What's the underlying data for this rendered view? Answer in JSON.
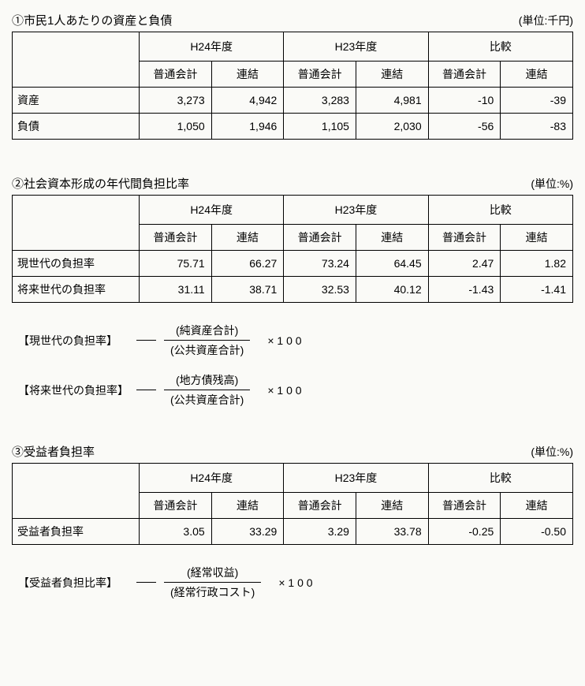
{
  "section1": {
    "title": "①市民1人あたりの資産と負債",
    "unit": "(単位:千円)",
    "group_headers": [
      "H24年度",
      "H23年度",
      "比較"
    ],
    "sub_headers": [
      "普通会計",
      "連結",
      "普通会計",
      "連結",
      "普通会計",
      "連結"
    ],
    "rows": [
      {
        "label": "資産",
        "v": [
          "3,273",
          "4,942",
          "3,283",
          "4,981",
          "-10",
          "-39"
        ]
      },
      {
        "label": "負債",
        "v": [
          "1,050",
          "1,946",
          "1,105",
          "2,030",
          "-56",
          "-83"
        ]
      }
    ]
  },
  "section2": {
    "title": "②社会資本形成の年代間負担比率",
    "unit": "(単位:%)",
    "group_headers": [
      "H24年度",
      "H23年度",
      "比較"
    ],
    "sub_headers": [
      "普通会計",
      "連結",
      "普通会計",
      "連結",
      "普通会計",
      "連結"
    ],
    "rows": [
      {
        "label": "現世代の負担率",
        "v": [
          "75.71",
          "66.27",
          "73.24",
          "64.45",
          "2.47",
          "1.82"
        ]
      },
      {
        "label": "将来世代の負担率",
        "v": [
          "31.11",
          "38.71",
          "32.53",
          "40.12",
          "-1.43",
          "-1.41"
        ]
      }
    ],
    "formulas": [
      {
        "label": "【現世代の負担率】",
        "top": "(純資産合計)",
        "bottom": "(公共資産合計)",
        "mult": "× 1 0 0"
      },
      {
        "label": "【将来世代の負担率】",
        "top": "(地方債残高)",
        "bottom": "(公共資産合計)",
        "mult": "× 1 0 0"
      }
    ]
  },
  "section3": {
    "title": "③受益者負担率",
    "unit": "(単位:%)",
    "group_headers": [
      "H24年度",
      "H23年度",
      "比較"
    ],
    "sub_headers": [
      "普通会計",
      "連結",
      "普通会計",
      "連結",
      "普通会計",
      "連結"
    ],
    "rows": [
      {
        "label": "受益者負担率",
        "v": [
          "3.05",
          "33.29",
          "3.29",
          "33.78",
          "-0.25",
          "-0.50"
        ]
      }
    ],
    "formulas": [
      {
        "label": "【受益者負担比率】",
        "top": "(経常収益)",
        "bottom": "(経常行政コスト)",
        "mult": "× 1 0 0"
      }
    ]
  }
}
